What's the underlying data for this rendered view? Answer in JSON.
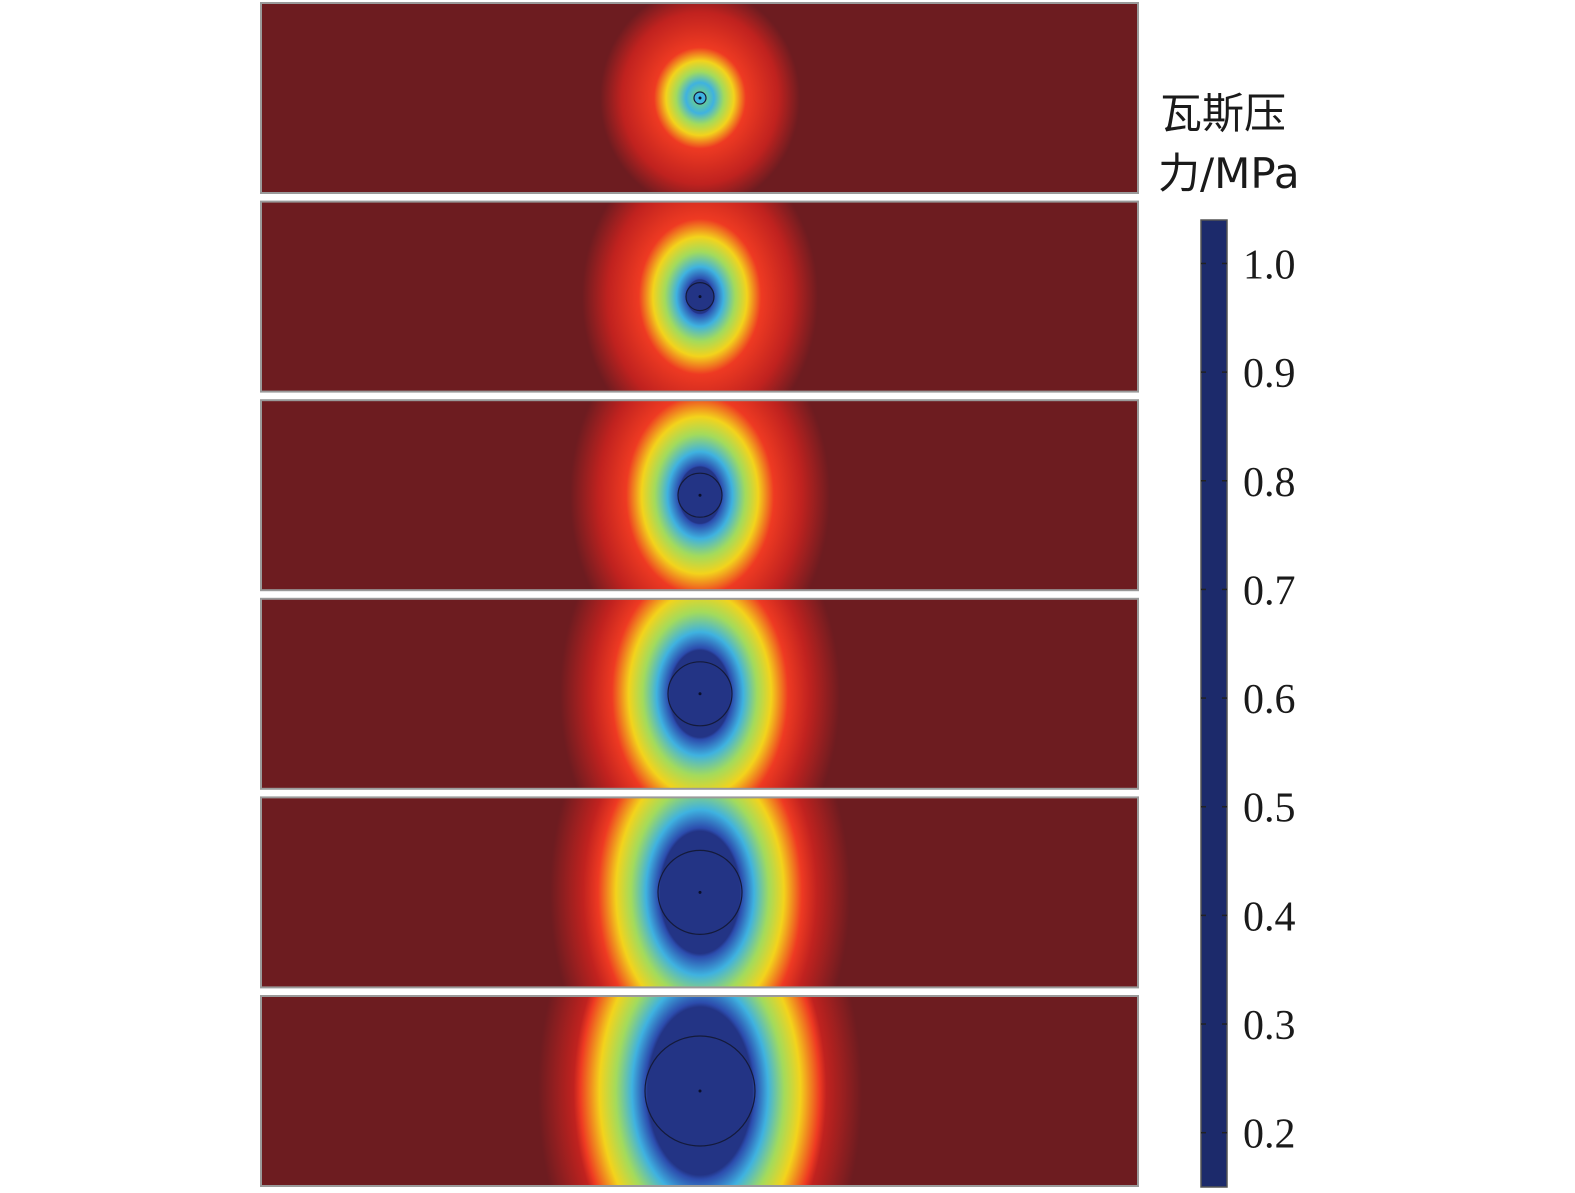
{
  "chart_data": {
    "type": "heatmap",
    "title": "",
    "colorbar": {
      "label_line1": "瓦斯压",
      "label_line2": "力/MPa",
      "min": 0.15,
      "max": 1.04,
      "ticks": [
        "1.0",
        "0.9",
        "0.8",
        "0.7",
        "0.6",
        "0.5",
        "0.4",
        "0.3",
        "0.2"
      ],
      "tick_values": [
        1.0,
        0.9,
        0.8,
        0.7,
        0.6,
        0.5,
        0.4,
        0.3,
        0.2
      ],
      "colormap": [
        {
          "value": 0.15,
          "color": "#1c2a6b"
        },
        {
          "value": 0.25,
          "color": "#2a3d9e"
        },
        {
          "value": 0.35,
          "color": "#2f6fd0"
        },
        {
          "value": 0.45,
          "color": "#3fb2e0"
        },
        {
          "value": 0.55,
          "color": "#6fcf87"
        },
        {
          "value": 0.65,
          "color": "#b9e04a"
        },
        {
          "value": 0.72,
          "color": "#f2e31c"
        },
        {
          "value": 0.8,
          "color": "#f5a21a"
        },
        {
          "value": 0.88,
          "color": "#ee3a22"
        },
        {
          "value": 0.95,
          "color": "#c0221f"
        },
        {
          "value": 1.04,
          "color": "#6d1c20"
        }
      ]
    },
    "panels": [
      {
        "index": 1,
        "background_pressure": 1.04,
        "min_pressure": 0.45
      },
      {
        "index": 2,
        "background_pressure": 1.04,
        "min_pressure": 0.2
      },
      {
        "index": 3,
        "background_pressure": 1.04,
        "min_pressure": 0.2
      },
      {
        "index": 4,
        "background_pressure": 1.04,
        "min_pressure": 0.2
      },
      {
        "index": 5,
        "background_pressure": 1.04,
        "min_pressure": 0.2
      },
      {
        "index": 6,
        "background_pressure": 1.04,
        "min_pressure": 0.2
      }
    ]
  }
}
